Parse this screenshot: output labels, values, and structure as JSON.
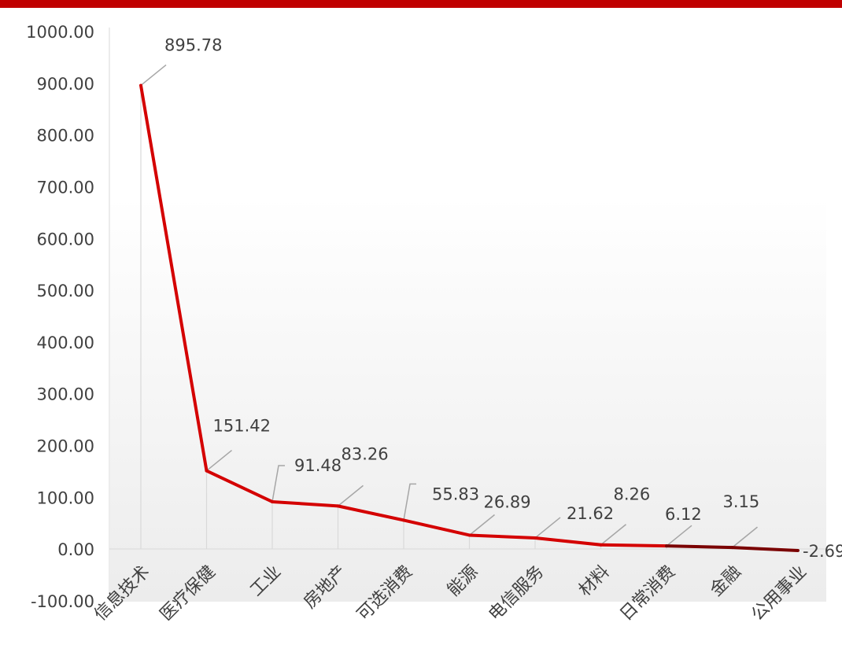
{
  "colors": {
    "top_bar": "#c00000",
    "line": "#d40000",
    "line_last": "#7a0000",
    "leader": "#a6a6a6",
    "drop": "#d9d9d9",
    "axis": "#d9d9d9",
    "text": "#404040"
  },
  "chart_data": {
    "type": "line",
    "title": "",
    "xlabel": "",
    "ylabel": "",
    "ylim": [
      -100,
      1000
    ],
    "ytick_step": 100,
    "y_tick_labels": [
      "-100.00",
      "0.00",
      "100.00",
      "200.00",
      "300.00",
      "400.00",
      "500.00",
      "600.00",
      "700.00",
      "800.00",
      "900.00",
      "1000.00"
    ],
    "grid": false,
    "drop_lines": true,
    "categories": [
      "信息技术",
      "医疗保健",
      "工业",
      "房地产",
      "可选消费",
      "能源",
      "电信服务",
      "材料",
      "日常消费",
      "金融",
      "公用事业"
    ],
    "series": [
      {
        "values": [
          895.78,
          151.42,
          91.48,
          83.26,
          55.83,
          26.89,
          21.62,
          8.26,
          6.12,
          3.15,
          -2.69
        ],
        "labels": [
          "895.78",
          "151.42",
          "91.48",
          "83.26",
          "55.83",
          "26.89",
          "21.62",
          "8.26",
          "6.12",
          "3.15",
          "-2.69"
        ]
      }
    ]
  }
}
